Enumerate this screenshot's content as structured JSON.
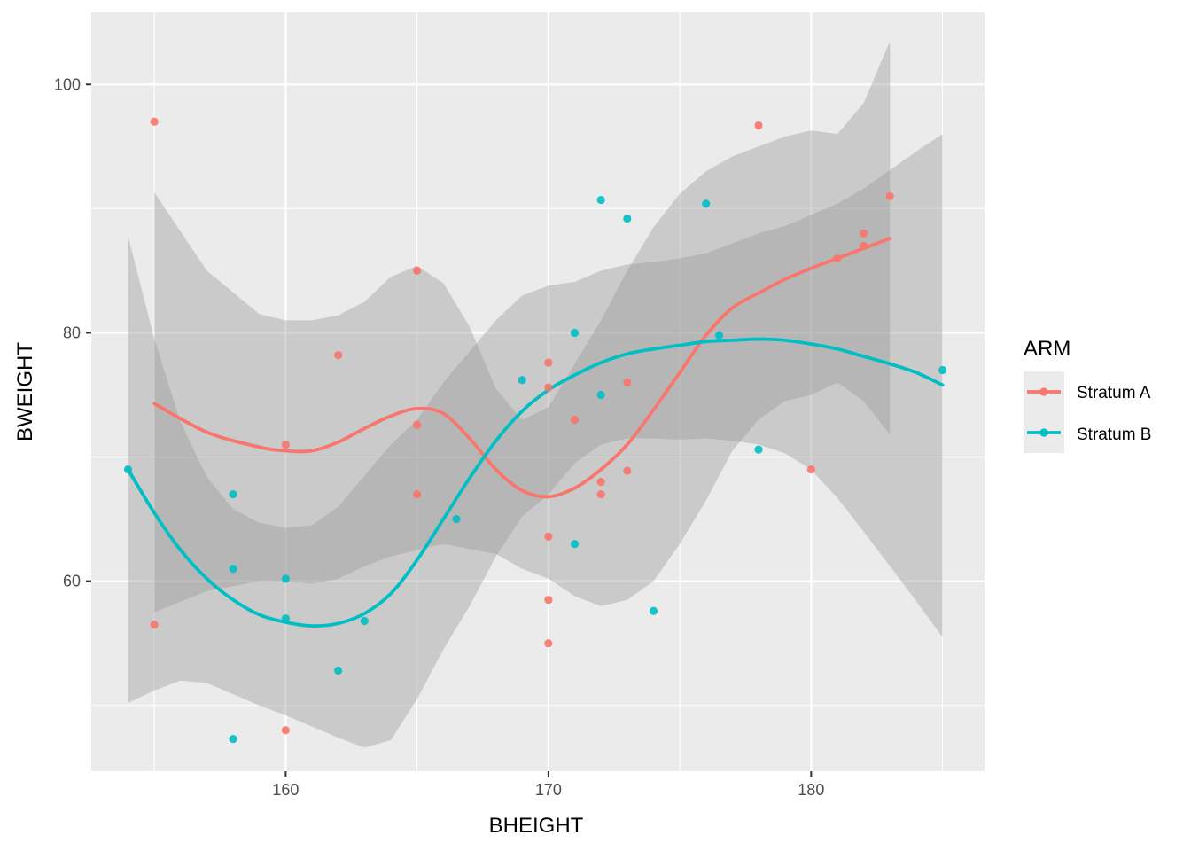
{
  "chart_data": {
    "type": "scatter",
    "xlabel": "BHEIGHT",
    "ylabel": "BWEIGHT",
    "xlim": [
      152.6,
      186.6
    ],
    "ylim": [
      44.7,
      105.8
    ],
    "xticks": [
      160,
      170,
      180
    ],
    "yticks": [
      60,
      80,
      100
    ],
    "grid": true,
    "legend": {
      "title": "ARM",
      "position": "right"
    },
    "series": [
      {
        "name": "Stratum A",
        "color": "#F8766D",
        "points": [
          [
            155,
            97.0
          ],
          [
            155,
            56.5
          ],
          [
            160,
            71.0
          ],
          [
            160,
            48.0
          ],
          [
            162,
            78.2
          ],
          [
            165,
            85.0
          ],
          [
            165,
            72.6
          ],
          [
            165,
            67.0
          ],
          [
            170,
            77.6
          ],
          [
            170,
            75.6
          ],
          [
            170,
            63.6
          ],
          [
            170,
            58.5
          ],
          [
            170,
            55.0
          ],
          [
            171,
            73.0
          ],
          [
            172,
            68.0
          ],
          [
            172,
            67.0
          ],
          [
            173,
            76.0
          ],
          [
            173,
            68.9
          ],
          [
            178,
            96.7
          ],
          [
            180,
            69.0
          ],
          [
            181,
            86.0
          ],
          [
            182,
            88.0
          ],
          [
            182,
            87.0
          ],
          [
            183,
            91.0
          ]
        ],
        "smooth": [
          [
            155,
            74.3
          ],
          [
            157,
            72.0
          ],
          [
            159,
            70.8
          ],
          [
            160,
            70.5
          ],
          [
            161,
            70.5
          ],
          [
            162,
            71.2
          ],
          [
            163,
            72.3
          ],
          [
            164,
            73.3
          ],
          [
            165,
            73.9
          ],
          [
            166,
            73.5
          ],
          [
            167,
            71.5
          ],
          [
            168,
            69.0
          ],
          [
            169,
            67.3
          ],
          [
            170,
            66.8
          ],
          [
            171,
            67.5
          ],
          [
            172,
            69.0
          ],
          [
            173,
            71.0
          ],
          [
            174,
            73.8
          ],
          [
            175,
            76.8
          ],
          [
            176,
            79.8
          ],
          [
            177,
            82.0
          ],
          [
            178,
            83.2
          ],
          [
            179,
            84.3
          ],
          [
            180,
            85.2
          ],
          [
            181,
            86.0
          ],
          [
            182,
            86.8
          ],
          [
            183,
            87.6
          ]
        ],
        "band_upper": [
          [
            155,
            91.3
          ],
          [
            157,
            85.0
          ],
          [
            159,
            81.5
          ],
          [
            160,
            81.0
          ],
          [
            161,
            81.0
          ],
          [
            162,
            81.4
          ],
          [
            163,
            82.5
          ],
          [
            164,
            84.5
          ],
          [
            165,
            85.4
          ],
          [
            166,
            84.0
          ],
          [
            167,
            80.5
          ],
          [
            168,
            75.5
          ],
          [
            169,
            73.0
          ],
          [
            170,
            74.0
          ],
          [
            171,
            77.5
          ],
          [
            172,
            81.0
          ],
          [
            173,
            85.0
          ],
          [
            174,
            88.5
          ],
          [
            175,
            91.2
          ],
          [
            176,
            93.0
          ],
          [
            177,
            94.2
          ],
          [
            178,
            95.0
          ],
          [
            179,
            95.8
          ],
          [
            180,
            96.3
          ],
          [
            181,
            96.0
          ],
          [
            182,
            98.5
          ],
          [
            183,
            103.5
          ]
        ],
        "band_lower": [
          [
            155,
            57.5
          ],
          [
            157,
            59.2
          ],
          [
            159,
            60.0
          ],
          [
            160,
            60.0
          ],
          [
            161,
            59.8
          ],
          [
            162,
            60.2
          ],
          [
            163,
            61.2
          ],
          [
            164,
            62.0
          ],
          [
            165,
            62.5
          ],
          [
            166,
            63.0
          ],
          [
            167,
            62.6
          ],
          [
            168,
            62.2
          ],
          [
            169,
            61.0
          ],
          [
            170,
            60.2
          ],
          [
            171,
            58.8
          ],
          [
            172,
            58.0
          ],
          [
            173,
            58.5
          ],
          [
            174,
            60.0
          ],
          [
            175,
            63.0
          ],
          [
            176,
            66.5
          ],
          [
            177,
            70.5
          ],
          [
            178,
            73.0
          ],
          [
            179,
            74.5
          ],
          [
            180,
            75.0
          ],
          [
            181,
            76.0
          ],
          [
            182,
            74.5
          ],
          [
            183,
            71.8
          ]
        ]
      },
      {
        "name": "Stratum B",
        "color": "#00BFC4",
        "points": [
          [
            154,
            69.0
          ],
          [
            158,
            67.0
          ],
          [
            158,
            61.0
          ],
          [
            158,
            47.3
          ],
          [
            160,
            60.2
          ],
          [
            160,
            57.0
          ],
          [
            162,
            52.8
          ],
          [
            163,
            56.8
          ],
          [
            166.5,
            65.0
          ],
          [
            169,
            76.2
          ],
          [
            171,
            80.0
          ],
          [
            171,
            63.0
          ],
          [
            172,
            90.7
          ],
          [
            172,
            75.0
          ],
          [
            173,
            89.2
          ],
          [
            174,
            57.6
          ],
          [
            176,
            90.4
          ],
          [
            176.5,
            79.8
          ],
          [
            178,
            70.6
          ],
          [
            185,
            77.0
          ]
        ],
        "smooth": [
          [
            154,
            69.0
          ],
          [
            155,
            65.5
          ],
          [
            156,
            62.5
          ],
          [
            157,
            60.2
          ],
          [
            158,
            58.5
          ],
          [
            159,
            57.3
          ],
          [
            160,
            56.7
          ],
          [
            161,
            56.4
          ],
          [
            162,
            56.6
          ],
          [
            163,
            57.4
          ],
          [
            164,
            59.0
          ],
          [
            165,
            61.7
          ],
          [
            166,
            65.0
          ],
          [
            167,
            68.3
          ],
          [
            168,
            71.3
          ],
          [
            169,
            73.7
          ],
          [
            170,
            75.4
          ],
          [
            171,
            76.6
          ],
          [
            172,
            77.6
          ],
          [
            173,
            78.3
          ],
          [
            174,
            78.7
          ],
          [
            175,
            79.0
          ],
          [
            176,
            79.3
          ],
          [
            177,
            79.4
          ],
          [
            178,
            79.5
          ],
          [
            179,
            79.4
          ],
          [
            180,
            79.1
          ],
          [
            181,
            78.7
          ],
          [
            182,
            78.1
          ],
          [
            183,
            77.5
          ],
          [
            184,
            76.8
          ],
          [
            185,
            75.8
          ]
        ],
        "band_upper": [
          [
            154,
            87.8
          ],
          [
            155,
            79.5
          ],
          [
            156,
            72.8
          ],
          [
            157,
            68.4
          ],
          [
            158,
            65.8
          ],
          [
            159,
            64.7
          ],
          [
            160,
            64.3
          ],
          [
            161,
            64.5
          ],
          [
            162,
            66.0
          ],
          [
            163,
            68.5
          ],
          [
            164,
            71.0
          ],
          [
            165,
            73.0
          ],
          [
            166,
            76.0
          ],
          [
            167,
            78.5
          ],
          [
            168,
            81.0
          ],
          [
            169,
            83.0
          ],
          [
            170,
            83.8
          ],
          [
            171,
            84.1
          ],
          [
            172,
            85.0
          ],
          [
            173,
            85.5
          ],
          [
            174,
            85.7
          ],
          [
            175,
            86.0
          ],
          [
            176,
            86.4
          ],
          [
            177,
            87.2
          ],
          [
            178,
            88.0
          ],
          [
            179,
            88.6
          ],
          [
            180,
            89.5
          ],
          [
            181,
            90.4
          ],
          [
            182,
            91.6
          ],
          [
            183,
            93.1
          ],
          [
            184,
            94.6
          ],
          [
            185,
            96.0
          ]
        ],
        "band_lower": [
          [
            154,
            50.2
          ],
          [
            155,
            51.2
          ],
          [
            156,
            52.0
          ],
          [
            157,
            51.8
          ],
          [
            158,
            50.9
          ],
          [
            159,
            50.0
          ],
          [
            160,
            49.2
          ],
          [
            161,
            48.3
          ],
          [
            162,
            47.4
          ],
          [
            163,
            46.6
          ],
          [
            164,
            47.2
          ],
          [
            165,
            50.5
          ],
          [
            166,
            54.5
          ],
          [
            167,
            58.0
          ],
          [
            168,
            62.0
          ],
          [
            169,
            65.2
          ],
          [
            170,
            67.0
          ],
          [
            171,
            69.5
          ],
          [
            172,
            71.0
          ],
          [
            173,
            71.5
          ],
          [
            174,
            71.5
          ],
          [
            175,
            71.4
          ],
          [
            176,
            71.5
          ],
          [
            177,
            71.3
          ],
          [
            178,
            71.0
          ],
          [
            179,
            70.3
          ],
          [
            180,
            69.0
          ],
          [
            181,
            66.7
          ],
          [
            182,
            64.0
          ],
          [
            183,
            61.2
          ],
          [
            184,
            58.4
          ],
          [
            185,
            55.5
          ]
        ]
      }
    ]
  }
}
